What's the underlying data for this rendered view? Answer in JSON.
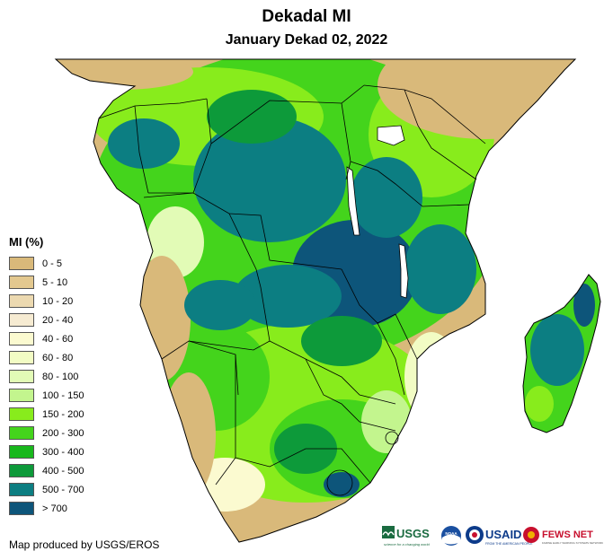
{
  "map": {
    "title": "Dekadal MI",
    "subtitle": "January Dekad 02, 2022"
  },
  "legend": {
    "title": "MI (%)",
    "items": [
      {
        "label": "0 - 5",
        "color": "#d9b97a"
      },
      {
        "label": "5 - 10",
        "color": "#e3c88f"
      },
      {
        "label": "10 - 20",
        "color": "#ecd9b0"
      },
      {
        "label": "20 - 40",
        "color": "#f6ebd2"
      },
      {
        "label": "40 - 60",
        "color": "#fbfad0"
      },
      {
        "label": "60 - 80",
        "color": "#f2fcc4"
      },
      {
        "label": "80 - 100",
        "color": "#e2fbb6"
      },
      {
        "label": "100 - 150",
        "color": "#c3f58e"
      },
      {
        "label": "150 - 200",
        "color": "#88ec1c"
      },
      {
        "label": "200 - 300",
        "color": "#44d41c"
      },
      {
        "label": "300 - 400",
        "color": "#18b81c"
      },
      {
        "label": "400 - 500",
        "color": "#0d9a3a"
      },
      {
        "label": "500 - 700",
        "color": "#0c7e82"
      },
      {
        "label": "> 700",
        "color": "#0d557a"
      }
    ]
  },
  "credit": "Map produced by USGS/EROS",
  "logos": {
    "usgs": "USGS",
    "usgs_tagline": "science for a changing world",
    "noaa": "NOAA",
    "usaid": "USAID",
    "usaid_tagline": "FROM THE AMERICAN PEOPLE",
    "fewsnet": "FEWS NET",
    "fewsnet_tagline": "FAMINE EARLY WARNING SYSTEMS NETWORK"
  },
  "colors": {
    "land_dry": "#d9b97a",
    "water": "#ffffff",
    "border": "#000000"
  }
}
